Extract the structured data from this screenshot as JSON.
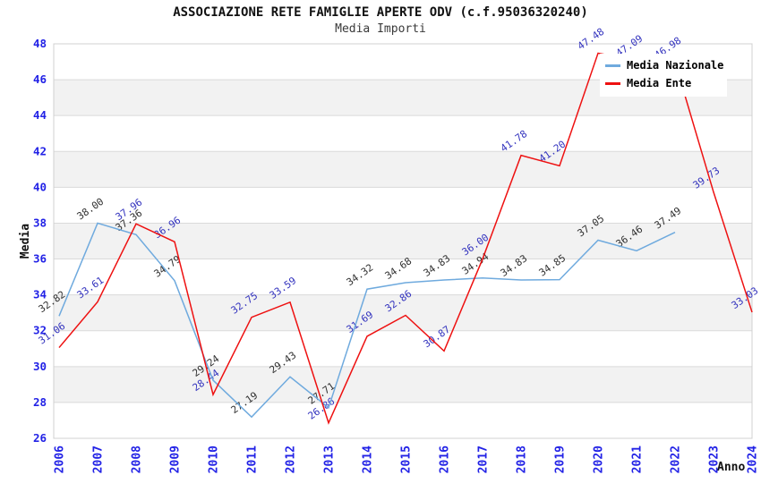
{
  "chart_data": {
    "type": "line",
    "title": "ASSOCIAZIONE RETE FAMIGLIE APERTE ODV (c.f.95036320240)",
    "subtitle": "Media Importi",
    "xlabel": "Anno",
    "ylabel": "Media",
    "ylim": [
      26,
      48
    ],
    "ytick_step": 2,
    "grid": true,
    "legend_position": "top-right",
    "categories": [
      "2006",
      "2007",
      "2008",
      "2009",
      "2010",
      "2011",
      "2012",
      "2013",
      "2014",
      "2015",
      "2016",
      "2017",
      "2018",
      "2019",
      "2020",
      "2021",
      "2022",
      "2023",
      "2024"
    ],
    "series": [
      {
        "name": "Media Nazionale",
        "color": "#6FAADE",
        "label_color": "#303030",
        "values": [
          32.82,
          38.0,
          37.36,
          34.79,
          29.24,
          27.19,
          29.43,
          27.71,
          34.32,
          34.68,
          34.83,
          34.94,
          34.83,
          34.85,
          37.05,
          36.46,
          37.49,
          null,
          null
        ]
      },
      {
        "name": "Media Ente",
        "color": "#EE1111",
        "label_color": "#3333BE",
        "values": [
          31.06,
          33.61,
          37.96,
          36.96,
          28.44,
          32.75,
          33.59,
          26.86,
          31.69,
          32.86,
          30.87,
          36.0,
          41.78,
          41.2,
          47.48,
          47.09,
          46.98,
          39.73,
          33.03
        ]
      }
    ],
    "colors": {
      "tick_labels": "#2222E6",
      "band_gray": "#F2F2F2",
      "band_white": "#FFFFFF",
      "grid_line": "#DADADA",
      "plot_border": "#D0D0D0",
      "title_text": "#111111"
    }
  }
}
